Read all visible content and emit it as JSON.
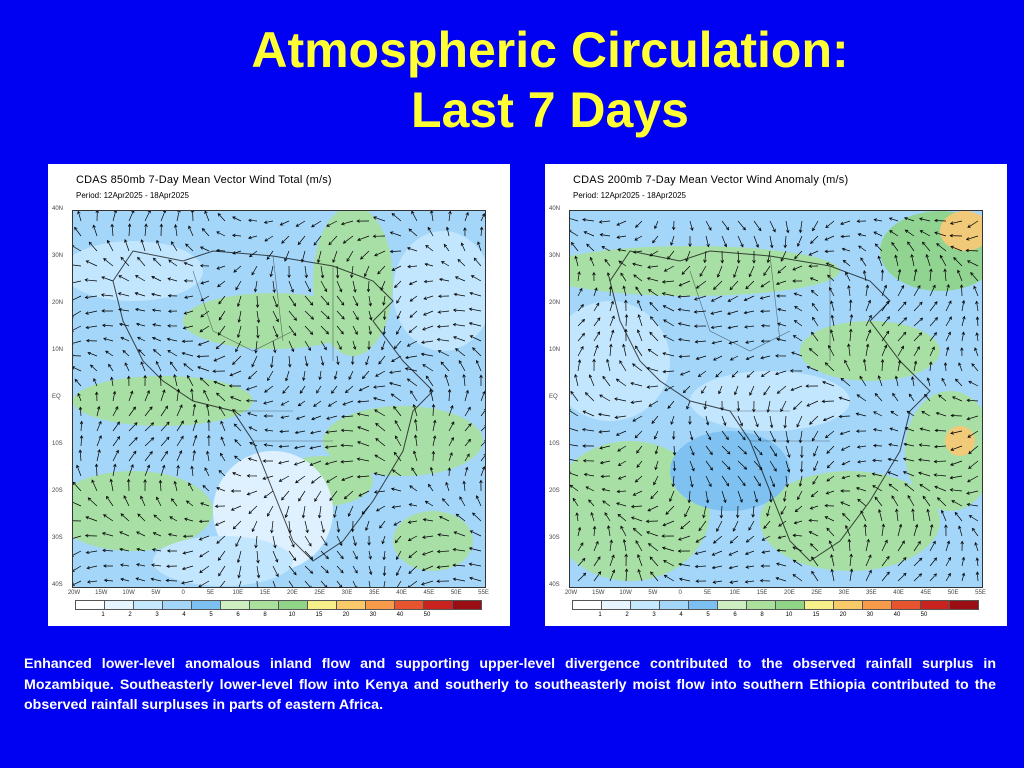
{
  "slide": {
    "title_line1": "Atmospheric Circulation:",
    "title_line2": "Last 7 Days",
    "caption": "Enhanced lower-level anomalous inland flow and supporting upper-level divergence contributed to the observed rainfall surplus in Mozambique.  Southeasterly lower-level flow into Kenya and southerly to southeasterly moist flow into southern Ethiopia contributed to the observed rainfall surpluses in parts of eastern Africa."
  },
  "maps": [
    {
      "title": "CDAS 850mb 7-Day Mean Vector Wind Total (m/s)",
      "period": "Period: 12Apr2025 - 18Apr2025"
    },
    {
      "title": "CDAS 200mb 7-Day Mean Vector Wind Anomaly (m/s)",
      "period": "Period: 12Apr2025 - 18Apr2025"
    }
  ],
  "lat_labels": [
    "40N",
    "30N",
    "20N",
    "10N",
    "EQ",
    "10S",
    "20S",
    "30S",
    "40S"
  ],
  "lon_labels": [
    "20W",
    "15W",
    "10W",
    "5W",
    "0",
    "5E",
    "10E",
    "15E",
    "20E",
    "25E",
    "30E",
    "35E",
    "40E",
    "45E",
    "50E",
    "55E"
  ],
  "colorbar": {
    "labels": [
      "1",
      "2",
      "3",
      "4",
      "5",
      "6",
      "8",
      "10",
      "15",
      "20",
      "30",
      "40",
      "50"
    ],
    "colors": [
      "#ffffff",
      "#e6f5ff",
      "#c6e8ff",
      "#a4d6fa",
      "#7cc0f2",
      "#cdeec0",
      "#a9e09c",
      "#8fd487",
      "#f7f08a",
      "#f9c96a",
      "#f79a4a",
      "#e8542f",
      "#c8231f",
      "#9a0d12"
    ]
  }
}
